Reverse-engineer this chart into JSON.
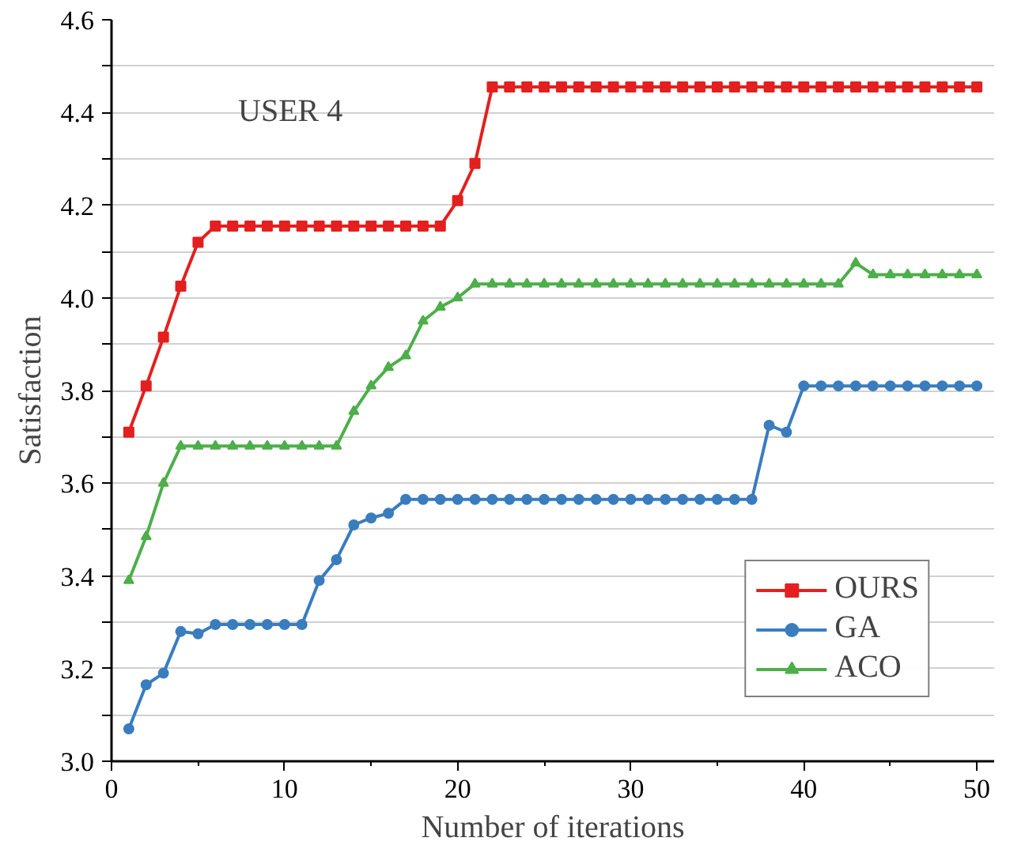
{
  "chart_data": {
    "type": "line",
    "xlabel": "Number of iterations",
    "ylabel": "Satisfaction",
    "annotations": [
      "USER 4"
    ],
    "x": [
      1,
      2,
      3,
      4,
      5,
      6,
      7,
      8,
      9,
      10,
      11,
      12,
      13,
      14,
      15,
      16,
      17,
      18,
      19,
      20,
      21,
      22,
      23,
      24,
      25,
      26,
      27,
      28,
      29,
      30,
      31,
      32,
      33,
      34,
      35,
      36,
      37,
      38,
      39,
      40,
      41,
      42,
      43,
      44,
      45,
      46,
      47,
      48,
      49,
      50
    ],
    "series": [
      {
        "name": "OURS",
        "color": "#e3201f",
        "marker": "square",
        "values": [
          3.71,
          3.81,
          3.915,
          4.025,
          4.12,
          4.155,
          4.155,
          4.155,
          4.155,
          4.155,
          4.155,
          4.155,
          4.155,
          4.155,
          4.155,
          4.155,
          4.155,
          4.155,
          4.155,
          4.21,
          4.29,
          4.455,
          4.455,
          4.455,
          4.455,
          4.455,
          4.455,
          4.455,
          4.455,
          4.455,
          4.455,
          4.455,
          4.455,
          4.455,
          4.455,
          4.455,
          4.455,
          4.455,
          4.455,
          4.455,
          4.455,
          4.455,
          4.455,
          4.455,
          4.455,
          4.455,
          4.455,
          4.455,
          4.455,
          4.455
        ]
      },
      {
        "name": "GA",
        "color": "#3a7dbf",
        "marker": "circle",
        "values": [
          3.07,
          3.165,
          3.19,
          3.28,
          3.275,
          3.295,
          3.295,
          3.295,
          3.295,
          3.295,
          3.295,
          3.39,
          3.435,
          3.51,
          3.525,
          3.535,
          3.565,
          3.565,
          3.565,
          3.565,
          3.565,
          3.565,
          3.565,
          3.565,
          3.565,
          3.565,
          3.565,
          3.565,
          3.565,
          3.565,
          3.565,
          3.565,
          3.565,
          3.565,
          3.565,
          3.565,
          3.565,
          3.725,
          3.71,
          3.81,
          3.81,
          3.81,
          3.81,
          3.81,
          3.81,
          3.81,
          3.81,
          3.81,
          3.81,
          3.81
        ]
      },
      {
        "name": "ACO",
        "color": "#4daf4a",
        "marker": "triangle",
        "values": [
          3.39,
          3.485,
          3.6,
          3.68,
          3.68,
          3.68,
          3.68,
          3.68,
          3.68,
          3.68,
          3.68,
          3.68,
          3.68,
          3.755,
          3.81,
          3.85,
          3.875,
          3.95,
          3.98,
          4.0,
          4.03,
          4.03,
          4.03,
          4.03,
          4.03,
          4.03,
          4.03,
          4.03,
          4.03,
          4.03,
          4.03,
          4.03,
          4.03,
          4.03,
          4.03,
          4.03,
          4.03,
          4.03,
          4.03,
          4.03,
          4.03,
          4.03,
          4.075,
          4.05,
          4.05,
          4.05,
          4.05,
          4.05,
          4.05,
          4.05
        ]
      }
    ],
    "xlim": [
      0,
      51
    ],
    "xticks": [
      0,
      10,
      20,
      30,
      40,
      50
    ],
    "ylim": [
      3.0,
      4.6
    ],
    "yticks": [
      {
        "value": 3.0,
        "label": "3.0"
      },
      {
        "value": 3.1,
        "label": null
      },
      3.2,
      {
        "value": 3.3,
        "label": null
      },
      3.4,
      {
        "value": 3.5,
        "label": null
      },
      3.6,
      {
        "value": 3.7,
        "label": null
      },
      3.8,
      {
        "value": 3.9,
        "label": null
      },
      {
        "value": 4.0,
        "label": "4.0"
      },
      {
        "value": 4.1,
        "label": null
      },
      4.2,
      {
        "value": 4.3,
        "label": null
      },
      4.4,
      {
        "value": 4.5,
        "label": null
      },
      4.6
    ],
    "grid": "y",
    "legend": "bottom right",
    "line_style": "solid"
  }
}
